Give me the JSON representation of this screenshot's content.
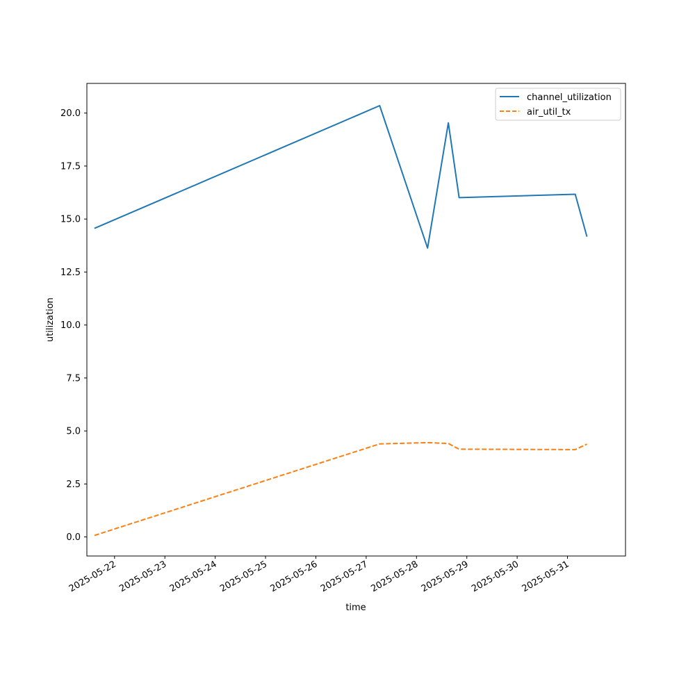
{
  "chart_data": {
    "type": "line",
    "title": "",
    "xlabel": "time",
    "ylabel": "utilization",
    "xlim": [
      "2025-05-21T10:48",
      "2025-06-01T03:40"
    ],
    "ylim": [
      -0.9,
      21.4
    ],
    "x_ticks": [
      "2025-05-22",
      "2025-05-23",
      "2025-05-24",
      "2025-05-25",
      "2025-05-26",
      "2025-05-27",
      "2025-05-28",
      "2025-05-29",
      "2025-05-30",
      "2025-05-31"
    ],
    "y_ticks": [
      "0.0",
      "2.5",
      "5.0",
      "7.5",
      "10.0",
      "12.5",
      "15.0",
      "17.5",
      "20.0"
    ],
    "grid": false,
    "legend_position": "upper right",
    "series": [
      {
        "name": "channel_utilization",
        "color": "#1f77b4",
        "dash": "solid",
        "x": [
          "2025-05-21T14:24",
          "2025-05-27T06:26",
          "2025-05-28T05:17",
          "2025-05-28T15:10",
          "2025-05-28T20:20",
          "2025-05-31T03:43",
          "2025-05-31T09:17"
        ],
        "y": [
          14.56,
          20.35,
          13.63,
          19.54,
          16.01,
          16.17,
          14.17
        ]
      },
      {
        "name": "air_util_tx",
        "color": "#ff7f0e",
        "dash": "dashed",
        "x": [
          "2025-05-21T14:24",
          "2025-05-27T06:26",
          "2025-05-28T05:17",
          "2025-05-28T15:10",
          "2025-05-28T20:20",
          "2025-05-31T03:43",
          "2025-05-31T09:17"
        ],
        "y": [
          0.07,
          4.39,
          4.45,
          4.41,
          4.14,
          4.12,
          4.38
        ]
      }
    ]
  }
}
